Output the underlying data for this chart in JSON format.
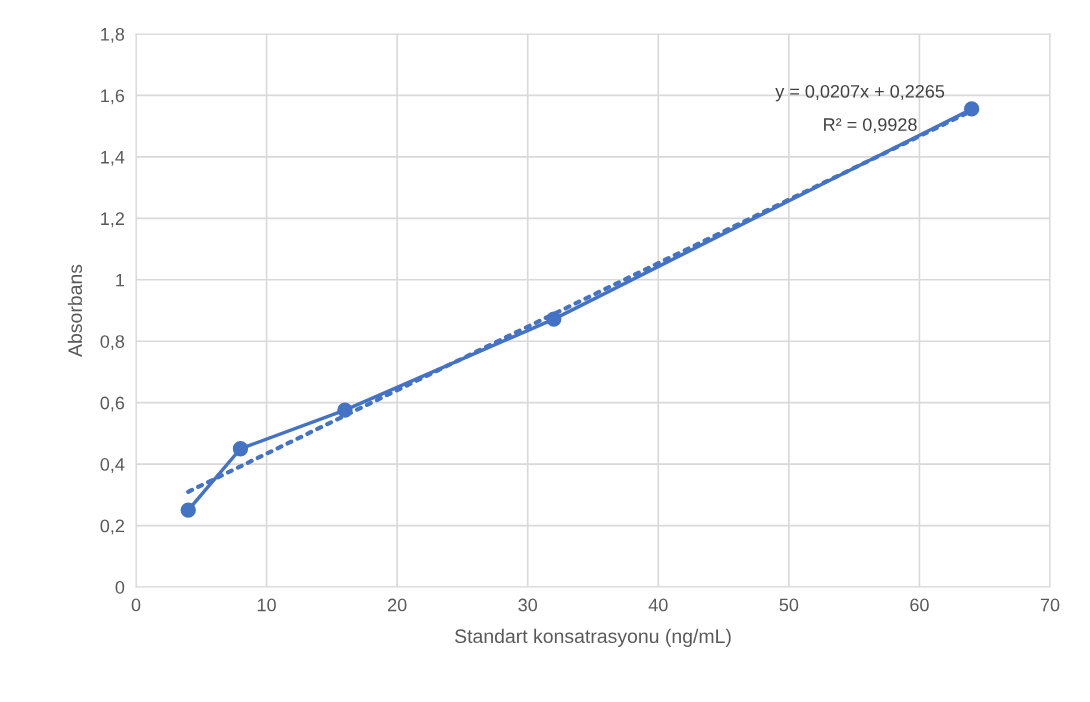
{
  "chart_data": {
    "type": "line",
    "xlabel": "Standart konsatrasyonu (ng/mL)",
    "ylabel": "Absorbans",
    "series": [
      {
        "color": "#4472c4",
        "x": [
          4,
          8,
          16,
          32,
          64
        ],
        "values": [
          0.25,
          0.45,
          0.576,
          0.872,
          1.556
        ],
        "marker": "circle",
        "line_style": "solid"
      },
      {
        "color": "#4472c4",
        "x": [
          4,
          64
        ],
        "values": [
          0.31,
          1.55
        ],
        "marker": "none",
        "line_style": "dotted"
      }
    ],
    "xlim": [
      0,
      70
    ],
    "xticks": [
      0,
      10,
      20,
      30,
      40,
      50,
      60,
      70
    ],
    "ylim": [
      0,
      1.8
    ],
    "yticks": [
      0,
      {
        "value": 0.2,
        "label": "0,2"
      },
      {
        "value": 0.4,
        "label": "0,4"
      },
      {
        "value": 0.6,
        "label": "0,6"
      },
      {
        "value": 0.8,
        "label": "0,8"
      },
      1,
      {
        "value": 1.2,
        "label": "1,2"
      },
      {
        "value": 1.4,
        "label": "1,4"
      },
      {
        "value": 1.6,
        "label": "1,6"
      },
      {
        "value": 1.8,
        "label": "1,8"
      }
    ],
    "grid": true,
    "annotations": [
      "y = 0,0207x + 0,2265",
      "R² = 0,9928"
    ]
  }
}
